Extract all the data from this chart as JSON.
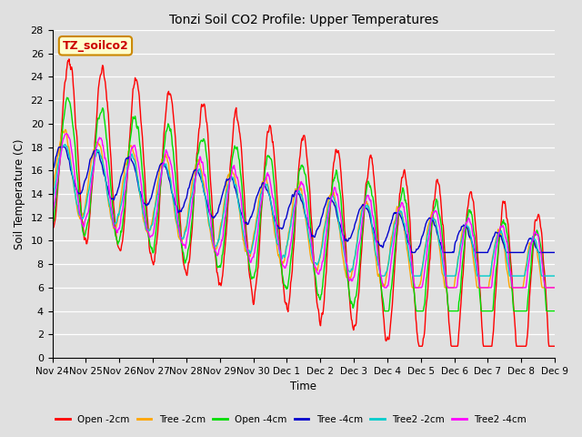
{
  "title": "Tonzi Soil CO2 Profile: Upper Temperatures",
  "ylabel": "Soil Temperature (C)",
  "xlabel": "Time",
  "watermark": "TZ_soilco2",
  "ylim": [
    0,
    28
  ],
  "series": [
    {
      "label": "Open -2cm",
      "color": "#ff0000"
    },
    {
      "label": "Tree -2cm",
      "color": "#ffa500"
    },
    {
      "label": "Open -4cm",
      "color": "#00dd00"
    },
    {
      "label": "Tree -4cm",
      "color": "#0000cc"
    },
    {
      "label": "Tree2 -2cm",
      "color": "#00cccc"
    },
    {
      "label": "Tree2 -4cm",
      "color": "#ff00ff"
    }
  ],
  "xtick_labels": [
    "Nov 24",
    "Nov 25",
    "Nov 26",
    "Nov 27",
    "Nov 28",
    "Nov 29",
    "Nov 30",
    "Dec 1",
    "Dec 2",
    "Dec 3",
    "Dec 4",
    "Dec 5",
    "Dec 6",
    "Dec 7",
    "Dec 8",
    "Dec 9"
  ],
  "ytick_vals": [
    0,
    2,
    4,
    6,
    8,
    10,
    12,
    14,
    16,
    18,
    20,
    22,
    24,
    26,
    28
  ],
  "num_points": 960,
  "bg_color": "#e0e0e0",
  "grid_color": "#ffffff"
}
